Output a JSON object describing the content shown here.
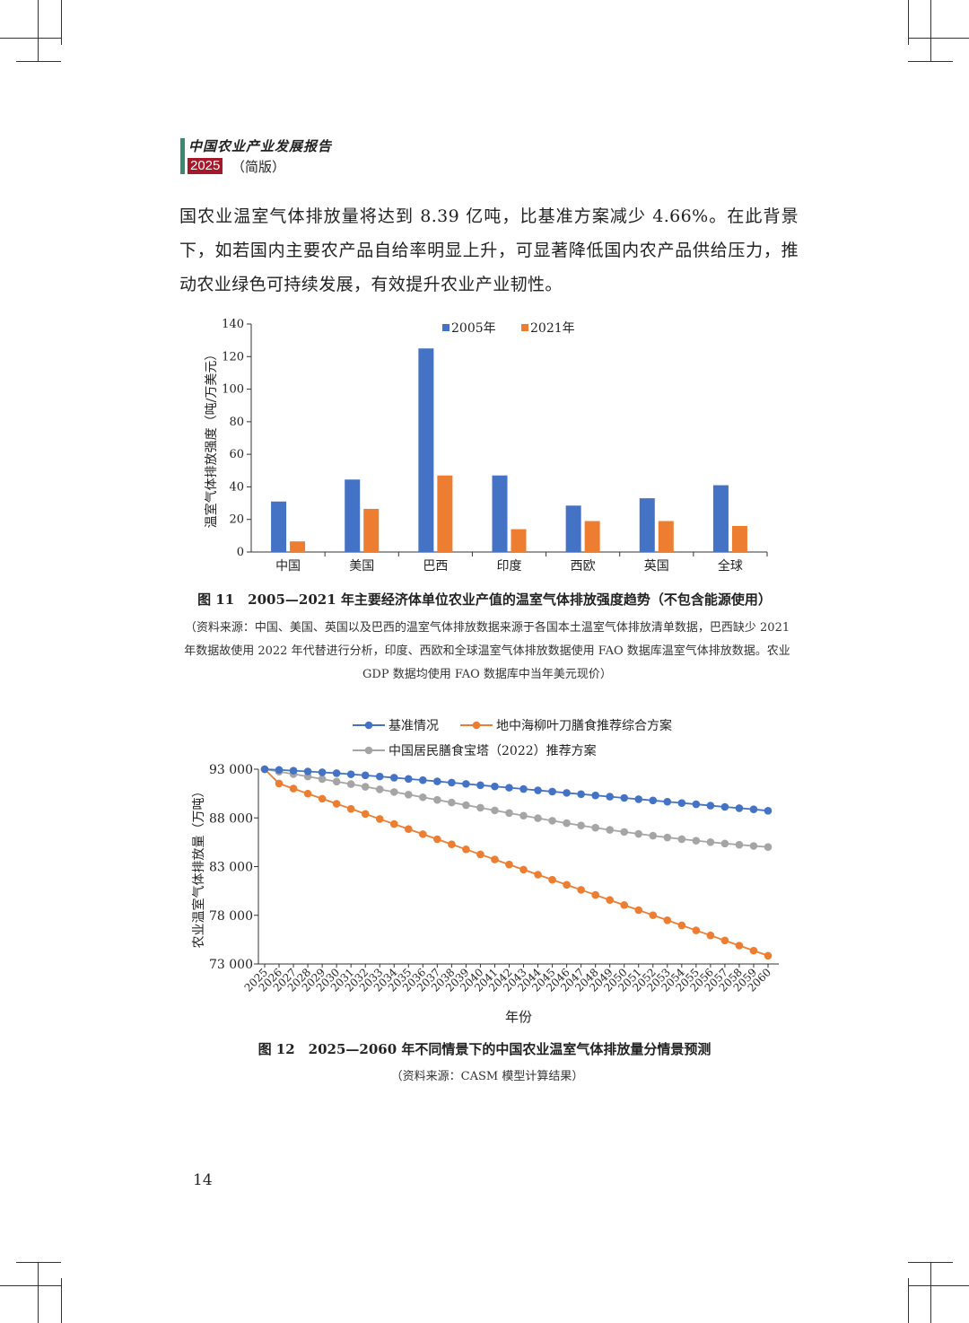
{
  "header": {
    "title": "中国农业产业发展报告",
    "year": "2025",
    "subtitle": "（简版）"
  },
  "body_text": "国农业温室气体排放量将达到 8.39 亿吨，比基准方案减少 4.66%。在此背景下，如若国内主要农产品自给率明显上升，可显著降低国内农产品供给压力，推动农业绿色可持续发展，有效提升农业产业韧性。",
  "figure11": {
    "caption": "图 11　2005—2021 年主要经济体单位农业产值的温室气体排放强度趋势（不包含能源使用）",
    "source": "（资料来源：中国、美国、英国以及巴西的温室气体排放数据来源于各国本土温室气体排放清单数据，巴西缺少 2021 年数据故使用 2022 年代替进行分析，印度、西欧和全球温室气体排放数据使用 FAO 数据库温室气体排放数据。农业 GDP 数据均使用 FAO 数据库中当年美元现价）"
  },
  "figure12": {
    "caption": "图 12　2025—2060 年不同情景下的中国农业温室气体排放量分情景预测",
    "source": "（资料来源：CASM 模型计算结果）"
  },
  "page_number": "14",
  "chart_data": [
    {
      "type": "bar",
      "ylabel": "温室气体排放强度（吨/万美元）",
      "xlabel": "",
      "ylim": [
        0,
        140
      ],
      "yticks": [
        0,
        20,
        40,
        60,
        80,
        100,
        120,
        140
      ],
      "categories": [
        "中国",
        "美国",
        "巴西",
        "印度",
        "西欧",
        "英国",
        "全球"
      ],
      "legend_position": "top",
      "series": [
        {
          "name": "2005年",
          "color": "#4472c4",
          "values": [
            31,
            44.5,
            125,
            47,
            28.5,
            33,
            41
          ]
        },
        {
          "name": "2021年",
          "color": "#ed7d31",
          "values": [
            6.5,
            26.5,
            47,
            14,
            19,
            19,
            16
          ]
        }
      ]
    },
    {
      "type": "line",
      "xlabel": "年份",
      "ylabel": "农业温室气体排放量（万吨）",
      "ylim": [
        73000,
        93000
      ],
      "yticks": [
        73000,
        78000,
        83000,
        88000,
        93000
      ],
      "ytick_labels": [
        "73 000",
        "78 000",
        "83 000",
        "88 000",
        "93 000"
      ],
      "legend_position": "top",
      "x": [
        "2025",
        "2026",
        "2027",
        "2028",
        "2029",
        "2030",
        "2031",
        "2032",
        "2033",
        "2034",
        "2035",
        "2036",
        "2037",
        "2038",
        "2039",
        "2040",
        "2041",
        "2042",
        "2043",
        "2044",
        "2045",
        "2046",
        "2047",
        "2048",
        "2049",
        "2050",
        "2051",
        "2052",
        "2053",
        "2054",
        "2055",
        "2056",
        "2057",
        "2058",
        "2059",
        "2060"
      ],
      "series": [
        {
          "name": "基准情况",
          "color": "#4472c4",
          "values": [
            93000,
            92930,
            92850,
            92770,
            92680,
            92590,
            92480,
            92370,
            92250,
            92130,
            92000,
            91880,
            91750,
            91620,
            91490,
            91360,
            91230,
            91100,
            90970,
            90830,
            90700,
            90570,
            90440,
            90310,
            90180,
            90050,
            89920,
            89790,
            89660,
            89530,
            89400,
            89260,
            89130,
            89000,
            88880,
            88730
          ]
        },
        {
          "name": "地中海柳叶刀膳食推荐综合方案",
          "color": "#ed7d31",
          "values": [
            93000,
            91530,
            91010,
            90490,
            89970,
            89450,
            88930,
            88410,
            87890,
            87370,
            86850,
            86330,
            85810,
            85290,
            84770,
            84250,
            83730,
            83210,
            82690,
            82170,
            81650,
            81130,
            80610,
            80090,
            79570,
            79050,
            78530,
            78010,
            77490,
            76970,
            76450,
            75930,
            75410,
            74890,
            74370,
            73850
          ]
        },
        {
          "name": "中国居民膳食宝塔（2022）推荐方案",
          "color": "#a5a5a5",
          "values": [
            93000,
            92750,
            92500,
            92250,
            91990,
            91730,
            91470,
            91200,
            90930,
            90660,
            90390,
            90120,
            89850,
            89580,
            89310,
            89040,
            88770,
            88500,
            88230,
            87970,
            87710,
            87460,
            87220,
            86990,
            86770,
            86560,
            86360,
            86170,
            85990,
            85820,
            85660,
            85510,
            85370,
            85240,
            85120,
            85010
          ]
        }
      ]
    }
  ]
}
